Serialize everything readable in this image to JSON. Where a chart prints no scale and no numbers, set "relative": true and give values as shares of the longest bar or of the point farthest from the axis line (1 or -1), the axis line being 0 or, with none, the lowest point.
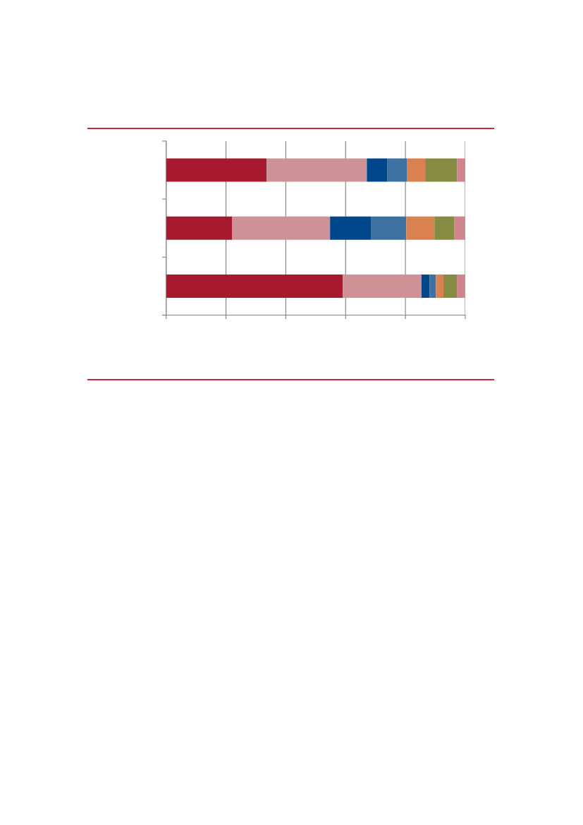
{
  "chart_data": {
    "type": "bar",
    "orientation": "horizontal",
    "stacked": true,
    "relative": true,
    "grid": "x",
    "categories": [
      null,
      null,
      null
    ],
    "series": [
      {
        "color": "#a6192e",
        "values": [
          0.336,
          0.22,
          0.591
        ]
      },
      {
        "color": "#cd9196",
        "values": [
          0.335,
          0.328,
          0.263
        ]
      },
      {
        "color": "#00468b",
        "values": [
          0.069,
          0.138,
          0.027
        ]
      },
      {
        "color": "#3e70a0",
        "values": [
          0.066,
          0.117,
          0.021
        ]
      },
      {
        "color": "#da8150",
        "values": [
          0.06,
          0.094,
          0.025
        ]
      },
      {
        "color": "#868b43",
        "values": [
          0.107,
          0.067,
          0.045
        ]
      },
      {
        "color": "#d0848c",
        "values": [
          0.027,
          0.036,
          0.028
        ]
      }
    ]
  }
}
